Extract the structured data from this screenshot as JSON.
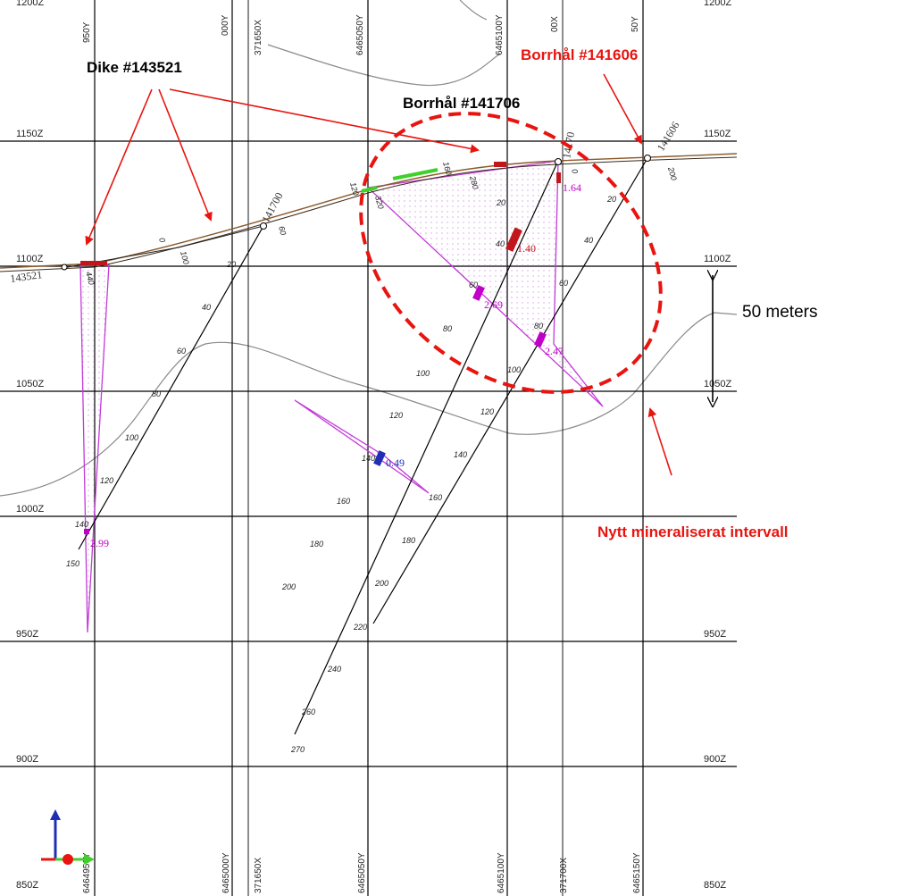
{
  "annotations": {
    "dike": "Dike #143521",
    "borrhal_141606": "Borrhål #141606",
    "borrhal_141706": "Borrhål #141706",
    "scale": "50 meters",
    "new_interval": "Nytt mineraliserat intervall"
  },
  "z_levels": {
    "top": "1200Z",
    "z1150": "1150Z",
    "z1100": "1100Z",
    "z1050": "1050Z",
    "z1000": "1000Z",
    "z950": "950Z",
    "z900": "900Z",
    "z850": "850Z"
  },
  "grid_labels": {
    "top": [
      "950Y",
      "000Y",
      "371650X",
      "6465050Y",
      "6465100Y",
      "00X",
      "50Y"
    ],
    "bottom": [
      "6464950Y",
      "6465000Y",
      "371650X",
      "6465050Y",
      "6465100Y",
      "371700X",
      "6465150Y"
    ]
  },
  "holes": {
    "h141700": "141700",
    "h141706": "14170",
    "h141606": "141606",
    "h143521": "143521"
  },
  "hole_ticks": {
    "dike": [
      "0",
      "100",
      "440"
    ],
    "h141700": [
      "60",
      "20",
      "40",
      "60",
      "80",
      "100",
      "120",
      "140",
      "150"
    ],
    "h141706": [
      "160",
      "120",
      "320",
      "280",
      "20",
      "40",
      "60",
      "80",
      "100",
      "120",
      "140",
      "160",
      "180",
      "200",
      "220",
      "240",
      "260",
      "270"
    ],
    "h141606": [
      "0",
      "200",
      "20",
      "40",
      "60",
      "80",
      "100",
      "120",
      "140",
      "160",
      "180",
      "200"
    ]
  },
  "assay_values": [
    "1.64",
    "1.40",
    "2.69",
    "2.47",
    "0.49",
    "2.99"
  ],
  "colors": {
    "annotation_black": "#000000",
    "annotation_red": "#e8140f",
    "grid": "#000000",
    "topography": "#8a5a2b",
    "mineral_zone": "#c23bd8",
    "assay_red": "#c0161c",
    "green_interval": "#3fd12a",
    "blue_interval": "#1e2fb5",
    "terrain_gray": "#8a8a8a"
  }
}
